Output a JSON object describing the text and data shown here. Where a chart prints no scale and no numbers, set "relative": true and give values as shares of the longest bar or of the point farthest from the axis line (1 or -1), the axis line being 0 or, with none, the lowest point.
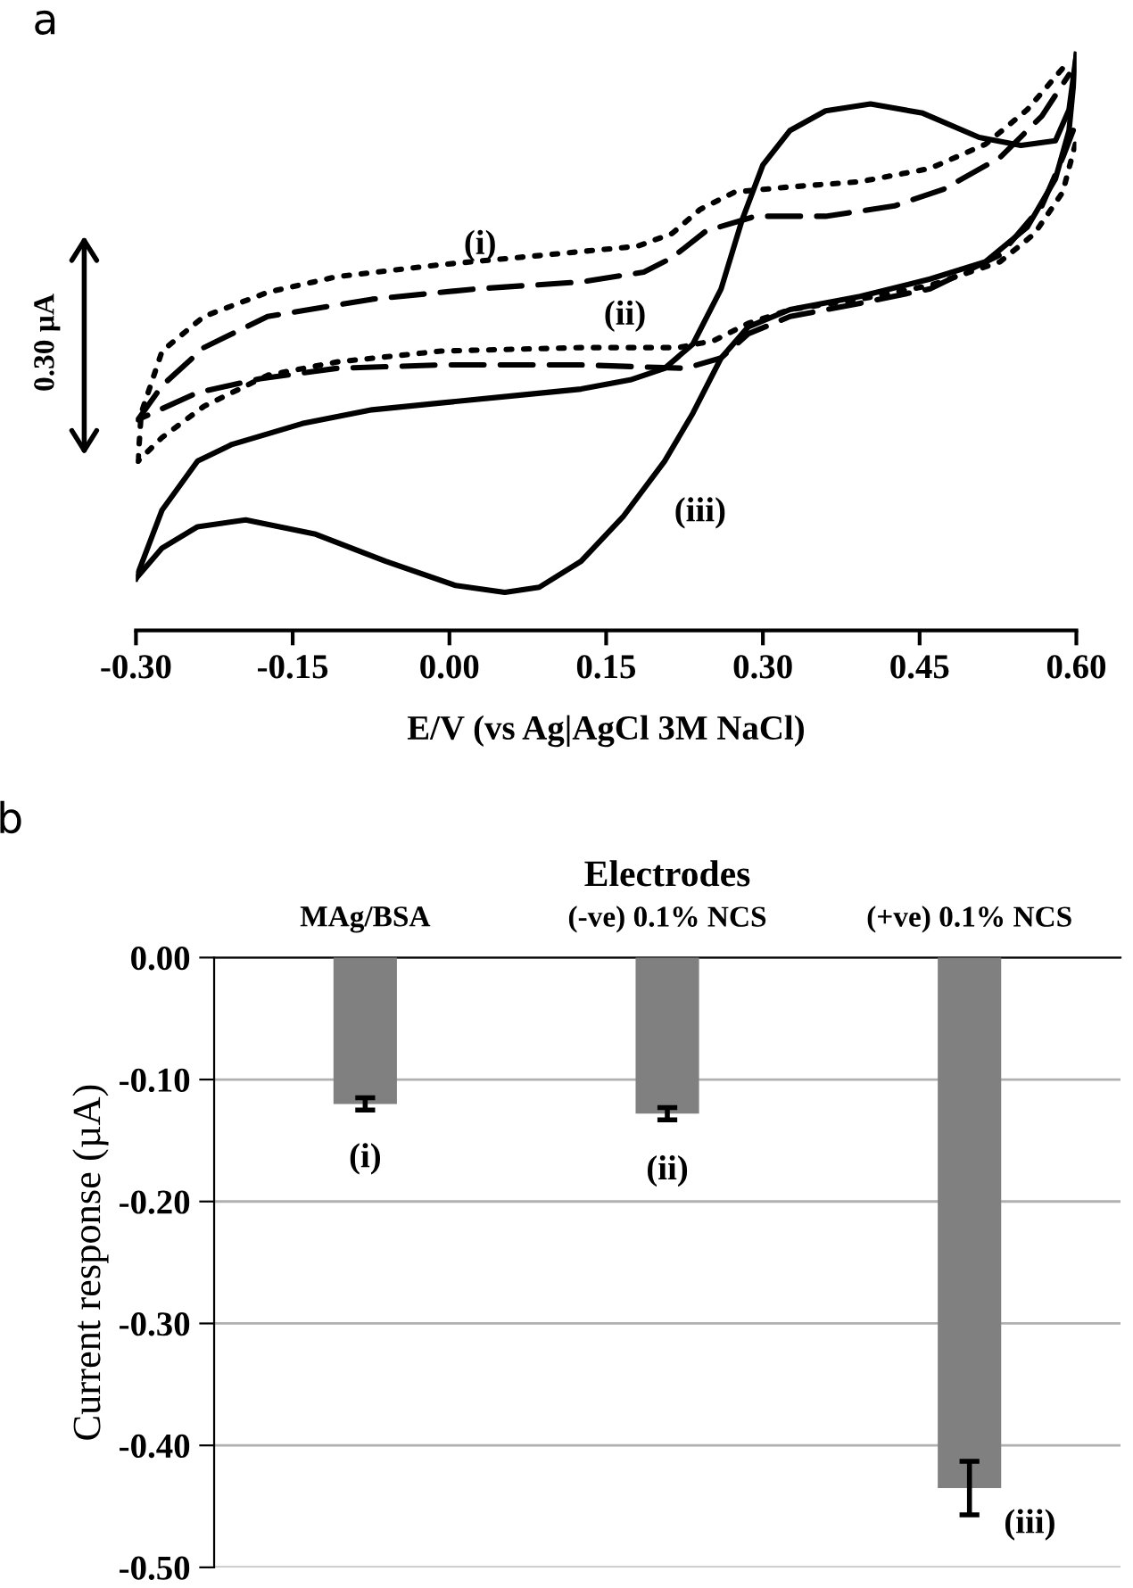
{
  "chart_data": [
    {
      "type": "line",
      "title": "a",
      "relative": true,
      "xlabel": "E/V (vs Ag|AgCl 3M NaCl)",
      "xlim": [
        -0.3,
        0.6
      ],
      "xticks": [
        {
          "value": -0.3,
          "label": "-0.30"
        },
        {
          "value": -0.15,
          "label": "-0.15"
        },
        {
          "value": 0.0,
          "label": "0.00"
        },
        {
          "value": 0.15,
          "label": "0.15"
        },
        {
          "value": 0.3,
          "label": "0.30"
        },
        {
          "value": 0.45,
          "label": "0.45"
        },
        {
          "value": 0.6,
          "label": "0.60"
        }
      ],
      "tick_labels": "x",
      "series": [
        {
          "color": "#000000",
          "line_style": "dotted",
          "x": [
            -0.298,
            -0.295,
            -0.275,
            -0.235,
            -0.174,
            -0.108,
            -0.008,
            0.093,
            0.18,
            0.213,
            0.24,
            0.273,
            0.326,
            0.393,
            0.46,
            0.513,
            0.553,
            0.587
          ],
          "values": [
            0.294,
            0.377,
            0.485,
            0.545,
            0.587,
            0.614,
            0.635,
            0.652,
            0.667,
            0.689,
            0.731,
            0.761,
            0.77,
            0.779,
            0.802,
            0.844,
            0.904,
            0.976
          ]
        },
        {
          "color": "#000000",
          "line_style": "dotted",
          "x": [
            0.599,
            0.587,
            0.56,
            0.527,
            0.46,
            0.393,
            0.326,
            0.286,
            0.253,
            0.219,
            0.126,
            -0.008,
            -0.108,
            -0.174,
            -0.235,
            -0.275,
            -0.298
          ],
          "values": [
            0.844,
            0.761,
            0.689,
            0.64,
            0.599,
            0.575,
            0.557,
            0.533,
            0.503,
            0.491,
            0.491,
            0.485,
            0.466,
            0.443,
            0.389,
            0.335,
            0.294
          ]
        },
        {
          "color": "#000000",
          "line_style": "dashed",
          "x": [
            -0.298,
            -0.275,
            -0.235,
            -0.174,
            -0.074,
            0.026,
            0.126,
            0.186,
            0.213,
            0.246,
            0.293,
            0.36,
            0.426,
            0.473,
            0.527,
            0.567,
            0.593
          ],
          "values": [
            0.366,
            0.425,
            0.491,
            0.545,
            0.575,
            0.593,
            0.605,
            0.622,
            0.647,
            0.694,
            0.719,
            0.719,
            0.737,
            0.766,
            0.821,
            0.893,
            0.965
          ]
        },
        {
          "color": "#000000",
          "line_style": "dashed",
          "x": [
            0.597,
            0.587,
            0.567,
            0.527,
            0.46,
            0.393,
            0.326,
            0.286,
            0.26,
            0.226,
            0.126,
            -0.008,
            -0.108,
            -0.181,
            -0.241,
            -0.298
          ],
          "values": [
            0.868,
            0.821,
            0.737,
            0.652,
            0.593,
            0.568,
            0.545,
            0.515,
            0.473,
            0.455,
            0.461,
            0.461,
            0.455,
            0.437,
            0.413,
            0.366
          ]
        },
        {
          "color": "#000000",
          "line_style": "solid",
          "x": [
            -0.3,
            -0.275,
            -0.241,
            -0.208,
            -0.141,
            -0.074,
            -0.008,
            0.059,
            0.126,
            0.173,
            0.206,
            0.233,
            0.26,
            0.28,
            0.3,
            0.326,
            0.36,
            0.403,
            0.453,
            0.507,
            0.547,
            0.58,
            0.593,
            0.6
          ],
          "values": [
            0.09,
            0.209,
            0.294,
            0.323,
            0.359,
            0.383,
            0.395,
            0.407,
            0.419,
            0.435,
            0.455,
            0.497,
            0.593,
            0.712,
            0.808,
            0.868,
            0.902,
            0.914,
            0.898,
            0.856,
            0.842,
            0.85,
            0.904,
            1.0
          ]
        },
        {
          "color": "#000000",
          "line_style": "solid",
          "x": [
            0.6,
            0.593,
            0.58,
            0.553,
            0.513,
            0.46,
            0.393,
            0.326,
            0.286,
            0.26,
            0.233,
            0.206,
            0.166,
            0.126,
            0.086,
            0.053,
            0.006,
            -0.061,
            -0.128,
            -0.195,
            -0.241,
            -0.275,
            -0.3
          ],
          "values": [
            1.0,
            0.868,
            0.784,
            0.7,
            0.64,
            0.61,
            0.58,
            0.557,
            0.527,
            0.473,
            0.377,
            0.294,
            0.197,
            0.12,
            0.075,
            0.066,
            0.078,
            0.12,
            0.167,
            0.192,
            0.18,
            0.143,
            0.09
          ]
        }
      ],
      "annotations": [
        "(i)",
        "(ii)",
        "(iii)",
        "0.30 µA"
      ]
    },
    {
      "type": "bar",
      "title": "b",
      "xlabel": "Electrodes",
      "ylabel": "Current response (µA)",
      "categories": [
        "MAg/BSA",
        "(-ve) 0.1% NCS",
        "(+ve) 0.1% NCS"
      ],
      "values": [
        -0.12,
        -0.128,
        -0.435
      ],
      "errors": [
        0.005,
        0.005,
        0.022
      ],
      "color": "#808080",
      "ylim": [
        -0.5,
        0.0
      ],
      "yticks": [
        {
          "value": 0.0,
          "label": "0.00"
        },
        {
          "value": -0.1,
          "label": "-0.10"
        },
        {
          "value": -0.2,
          "label": "-0.20"
        },
        {
          "value": -0.3,
          "label": "-0.30"
        },
        {
          "value": -0.4,
          "label": "-0.40"
        },
        {
          "value": -0.5,
          "label": "-0.50"
        }
      ],
      "grid": "y",
      "annotations": [
        "(i)",
        "(ii)",
        "(iii)"
      ]
    }
  ]
}
